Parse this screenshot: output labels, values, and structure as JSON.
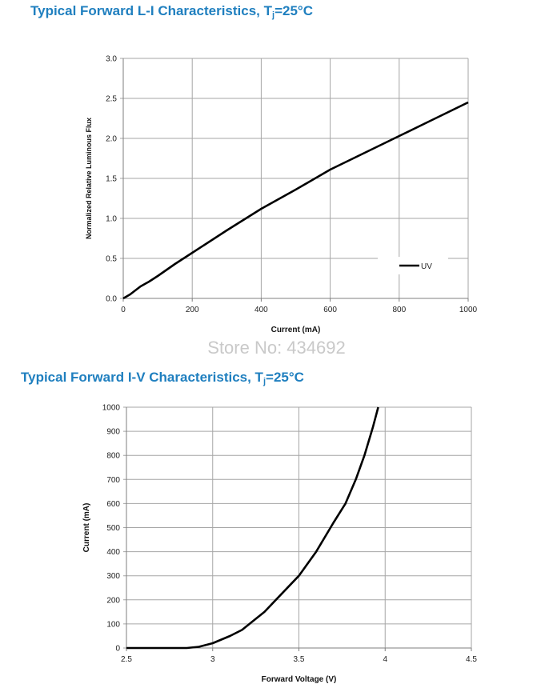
{
  "page": {
    "title1_main": "Typical Forward L-I Characteristics, T",
    "title1_sub": "j",
    "title1_tail": "=25°C",
    "title2_main": "Typical Forward I-V Characteristics, T",
    "title2_sub": "j",
    "title2_tail": "=25°C",
    "watermark": "Store No: 434692"
  },
  "colors": {
    "title": "#1f7fbf",
    "line": "#000000",
    "grid": "#a6a6a6",
    "watermark": "#c9c9c9"
  },
  "chart_data": [
    {
      "type": "line",
      "title": "Typical Forward L-I Characteristics, Tj=25°C",
      "xlabel": "Current (mA)",
      "ylabel": "Normalized Relative Luminous Flux",
      "xlim": [
        0,
        1000
      ],
      "ylim": [
        0,
        3.0
      ],
      "x_ticks": [
        "0",
        "200",
        "400",
        "600",
        "800",
        "1000"
      ],
      "y_ticks": [
        "0.0",
        "0.5",
        "1.0",
        "1.5",
        "2.0",
        "2.5",
        "3.0"
      ],
      "grid": true,
      "legend": "right",
      "series": [
        {
          "name": "UV",
          "x": [
            0,
            20,
            50,
            75,
            100,
            150,
            200,
            300,
            400,
            500,
            600,
            700,
            800,
            900,
            1000
          ],
          "y": [
            0.0,
            0.05,
            0.15,
            0.21,
            0.28,
            0.43,
            0.57,
            0.85,
            1.12,
            1.36,
            1.61,
            1.82,
            2.03,
            2.24,
            2.45
          ]
        }
      ]
    },
    {
      "type": "line",
      "title": "Typical Forward I-V Characteristics, Tj=25°C",
      "xlabel": "Forward Voltage (V)",
      "ylabel": "Current (mA)",
      "xlim": [
        2.5,
        4.5
      ],
      "ylim": [
        0,
        1000
      ],
      "x_ticks": [
        "2.5",
        "3",
        "3.5",
        "4",
        "4.5"
      ],
      "y_ticks": [
        "0",
        "100",
        "200",
        "300",
        "400",
        "500",
        "600",
        "700",
        "800",
        "900",
        "1000"
      ],
      "grid": true,
      "series": [
        {
          "x": [
            2.5,
            2.85,
            2.92,
            3.0,
            3.1,
            3.17,
            3.3,
            3.4,
            3.5,
            3.6,
            3.7,
            3.77,
            3.83,
            3.88,
            3.93,
            3.96
          ],
          "y": [
            0,
            0,
            5,
            20,
            50,
            75,
            150,
            225,
            300,
            400,
            520,
            600,
            700,
            800,
            920,
            1000
          ]
        }
      ]
    }
  ]
}
